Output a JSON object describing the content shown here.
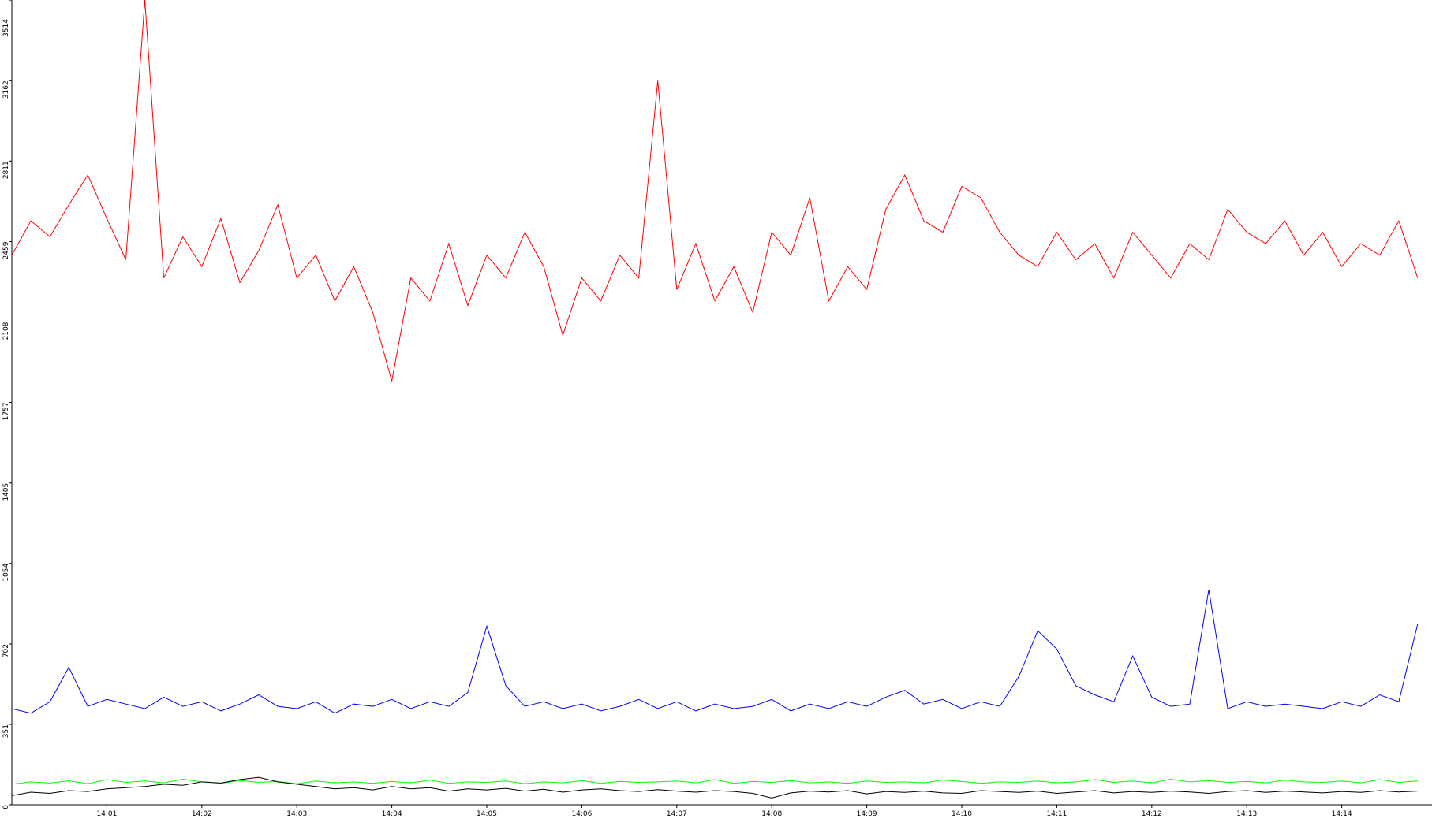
{
  "chart_data": {
    "type": "line",
    "xlim": [
      0,
      14.95
    ],
    "ylim": [
      0,
      3514
    ],
    "xticks": [
      {
        "value": 1,
        "label": "14:01"
      },
      {
        "value": 2,
        "label": "14:02"
      },
      {
        "value": 3,
        "label": "14:03"
      },
      {
        "value": 4,
        "label": "14:04"
      },
      {
        "value": 5,
        "label": "14:05"
      },
      {
        "value": 6,
        "label": "14:06"
      },
      {
        "value": 7,
        "label": "14:07"
      },
      {
        "value": 8,
        "label": "14:08"
      },
      {
        "value": 9,
        "label": "14:09"
      },
      {
        "value": 10,
        "label": "14:10"
      },
      {
        "value": 11,
        "label": "14:11"
      },
      {
        "value": 12,
        "label": "14:12"
      },
      {
        "value": 13,
        "label": "14:13"
      },
      {
        "value": 14,
        "label": "14:14"
      }
    ],
    "yticks": [
      0,
      351,
      702,
      1054,
      1405,
      1757,
      2108,
      2459,
      2811,
      3162,
      3514
    ],
    "x": [
      0,
      0.2,
      0.4,
      0.6,
      0.8,
      1,
      1.2,
      1.4,
      1.6,
      1.8,
      2,
      2.2,
      2.4,
      2.6,
      2.8,
      3,
      3.2,
      3.4,
      3.6,
      3.8,
      4,
      4.2,
      4.4,
      4.6,
      4.8,
      5,
      5.2,
      5.4,
      5.6,
      5.8,
      6,
      6.2,
      6.4,
      6.6,
      6.8,
      7,
      7.2,
      7.4,
      7.6,
      7.8,
      8,
      8.2,
      8.4,
      8.6,
      8.8,
      9,
      9.2,
      9.4,
      9.6,
      9.8,
      10,
      10.2,
      10.4,
      10.6,
      10.8,
      11,
      11.2,
      11.4,
      11.6,
      11.8,
      12,
      12.2,
      12.4,
      12.6,
      12.8,
      13,
      13.2,
      13.4,
      13.6,
      13.8,
      14,
      14.2,
      14.4,
      14.6,
      14.8
    ],
    "series": [
      {
        "color": "#ff0000",
        "values": [
          2400,
          2550,
          2480,
          2620,
          2750,
          2560,
          2380,
          3514,
          2300,
          2480,
          2350,
          2560,
          2280,
          2420,
          2620,
          2300,
          2400,
          2200,
          2350,
          2150,
          1850,
          2300,
          2200,
          2450,
          2180,
          2400,
          2300,
          2500,
          2350,
          2050,
          2300,
          2200,
          2400,
          2300,
          3162,
          2250,
          2450,
          2200,
          2350,
          2150,
          2500,
          2400,
          2650,
          2200,
          2350,
          2250,
          2600,
          2750,
          2550,
          2500,
          2700,
          2650,
          2500,
          2400,
          2350,
          2500,
          2380,
          2450,
          2300,
          2500,
          2400,
          2300,
          2450,
          2380,
          2600,
          2500,
          2450,
          2550,
          2400,
          2500,
          2350,
          2450,
          2400,
          2550,
          2300
        ]
      },
      {
        "color": "#0000ff",
        "values": [
          420,
          400,
          450,
          600,
          430,
          460,
          440,
          420,
          470,
          430,
          450,
          410,
          440,
          480,
          430,
          420,
          450,
          400,
          440,
          430,
          460,
          420,
          450,
          430,
          490,
          780,
          520,
          430,
          450,
          420,
          440,
          410,
          430,
          460,
          420,
          450,
          410,
          440,
          420,
          430,
          460,
          410,
          440,
          420,
          450,
          430,
          470,
          500,
          440,
          460,
          420,
          450,
          430,
          560,
          760,
          680,
          520,
          480,
          450,
          650,
          470,
          430,
          440,
          940,
          420,
          450,
          430,
          440,
          430,
          420,
          450,
          430,
          480,
          450,
          790
        ]
      },
      {
        "color": "#00ff00",
        "values": [
          90,
          100,
          95,
          105,
          92,
          110,
          98,
          104,
          96,
          112,
          100,
          94,
          106,
          98,
          102,
          92,
          104,
          96,
          100,
          94,
          102,
          96,
          108,
          94,
          100,
          98,
          104,
          92,
          100,
          96,
          106,
          94,
          102,
          98,
          100,
          104,
          96,
          110,
          94,
          102,
          98,
          106,
          96,
          100,
          94,
          104,
          98,
          100,
          96,
          108,
          102,
          94,
          100,
          98,
          104,
          96,
          100,
          110,
          98,
          104,
          96,
          112,
          100,
          106,
          98,
          102,
          96,
          108,
          100,
          98,
          104,
          96,
          110,
          98,
          104
        ]
      },
      {
        "color": "#000000",
        "values": [
          40,
          55,
          50,
          62,
          58,
          70,
          75,
          80,
          90,
          85,
          100,
          95,
          110,
          120,
          100,
          90,
          80,
          70,
          75,
          65,
          80,
          70,
          75,
          60,
          70,
          65,
          72,
          60,
          68,
          55,
          65,
          70,
          62,
          58,
          66,
          60,
          55,
          62,
          58,
          50,
          30,
          52,
          60,
          56,
          62,
          48,
          58,
          54,
          60,
          52,
          50,
          62,
          58,
          54,
          60,
          50,
          56,
          62,
          52,
          58,
          54,
          60,
          56,
          50,
          58,
          62,
          54,
          60,
          56,
          52,
          58,
          54,
          62,
          56,
          60
        ]
      }
    ]
  }
}
